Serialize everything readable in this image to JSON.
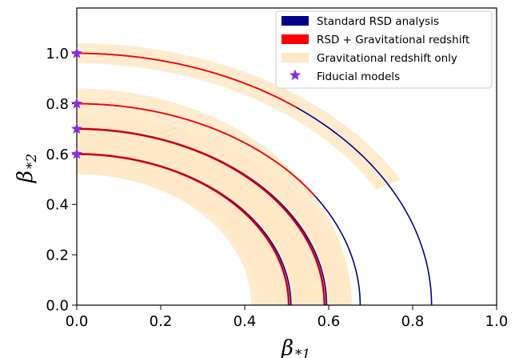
{
  "chart_data": {
    "type": "line",
    "title": "",
    "xlabel": {
      "symbol": "β",
      "subscript": "*1"
    },
    "ylabel": {
      "symbol": "β",
      "subscript": "*2"
    },
    "xlim": [
      0.0,
      1.0
    ],
    "ylim": [
      0.0,
      1.18
    ],
    "xticks": [
      "0.0",
      "0.2",
      "0.4",
      "0.6",
      "0.8",
      "1.0"
    ],
    "yticks": [
      "0.0",
      "0.2",
      "0.4",
      "0.6",
      "0.8",
      "1.0"
    ],
    "legend": {
      "position": "top-right",
      "entries": [
        {
          "label": "Standard RSD analysis",
          "color": "#00008b",
          "kind": "patch"
        },
        {
          "label": "RSD + Gravitational redshift",
          "color": "#ff0000",
          "kind": "patch"
        },
        {
          "label": "Gravitational redshift only",
          "color": "#ffe9c7",
          "kind": "patch"
        },
        {
          "label": "Fiducial models",
          "color": "#8a2be2",
          "kind": "star"
        }
      ]
    },
    "series": [
      {
        "name": "Standard RSD analysis",
        "color": "#00008b",
        "curves": [
          {
            "fiducial_b2": 0.6,
            "b1_at_zero": 0.51
          },
          {
            "fiducial_b2": 0.7,
            "b1_at_zero": 0.595
          },
          {
            "fiducial_b2": 0.8,
            "b1_at_zero": 0.675
          },
          {
            "fiducial_b2": 1.0,
            "b1_at_zero": 0.845
          }
        ]
      },
      {
        "name": "RSD + Gravitational redshift",
        "color": "#ff0000",
        "curves": [
          {
            "fiducial_b2": 0.6,
            "b1_at_zero": 0.505,
            "b1_end": 0.505,
            "b2_end": 0.0
          },
          {
            "fiducial_b2": 0.7,
            "b1_at_zero": 0.59,
            "b1_end": 0.59,
            "b2_end": 0.0
          },
          {
            "fiducial_b2": 0.8,
            "b1_at_zero": 0.675,
            "b1_end": 0.56,
            "b2_end": 0.43
          },
          {
            "fiducial_b2": 1.0,
            "b1_at_zero": 0.845,
            "b1_end": 0.52,
            "b2_end": 0.78
          }
        ]
      },
      {
        "name": "Gravitational redshift only",
        "color": "#ffe9c7",
        "bands": [
          {
            "fiducial_b2": 0.6,
            "outer_b2": 0.66,
            "inner_b2": 0.52,
            "outer_b1": 0.57,
            "inner_b1": 0.43
          },
          {
            "fiducial_b2": 0.7,
            "outer_b2": 0.76,
            "inner_b2": 0.62,
            "outer_b1": 0.655,
            "inner_b1": 0.52
          },
          {
            "fiducial_b2": 0.8,
            "outer_b2": 0.86,
            "inner_b2": 0.52,
            "outer_b1": 0.655,
            "inner_b1": 0.415
          },
          {
            "fiducial_b2": 1.0,
            "outer_b2": 1.04,
            "inner_b2": 0.96,
            "b1_end": 0.7,
            "b2_end": 0.45
          }
        ]
      },
      {
        "name": "Fiducial models",
        "color": "#8a2be2",
        "points": [
          {
            "x": 0.0,
            "y": 0.6
          },
          {
            "x": 0.0,
            "y": 0.7
          },
          {
            "x": 0.0,
            "y": 0.8
          },
          {
            "x": 0.0,
            "y": 1.0
          }
        ]
      }
    ]
  }
}
